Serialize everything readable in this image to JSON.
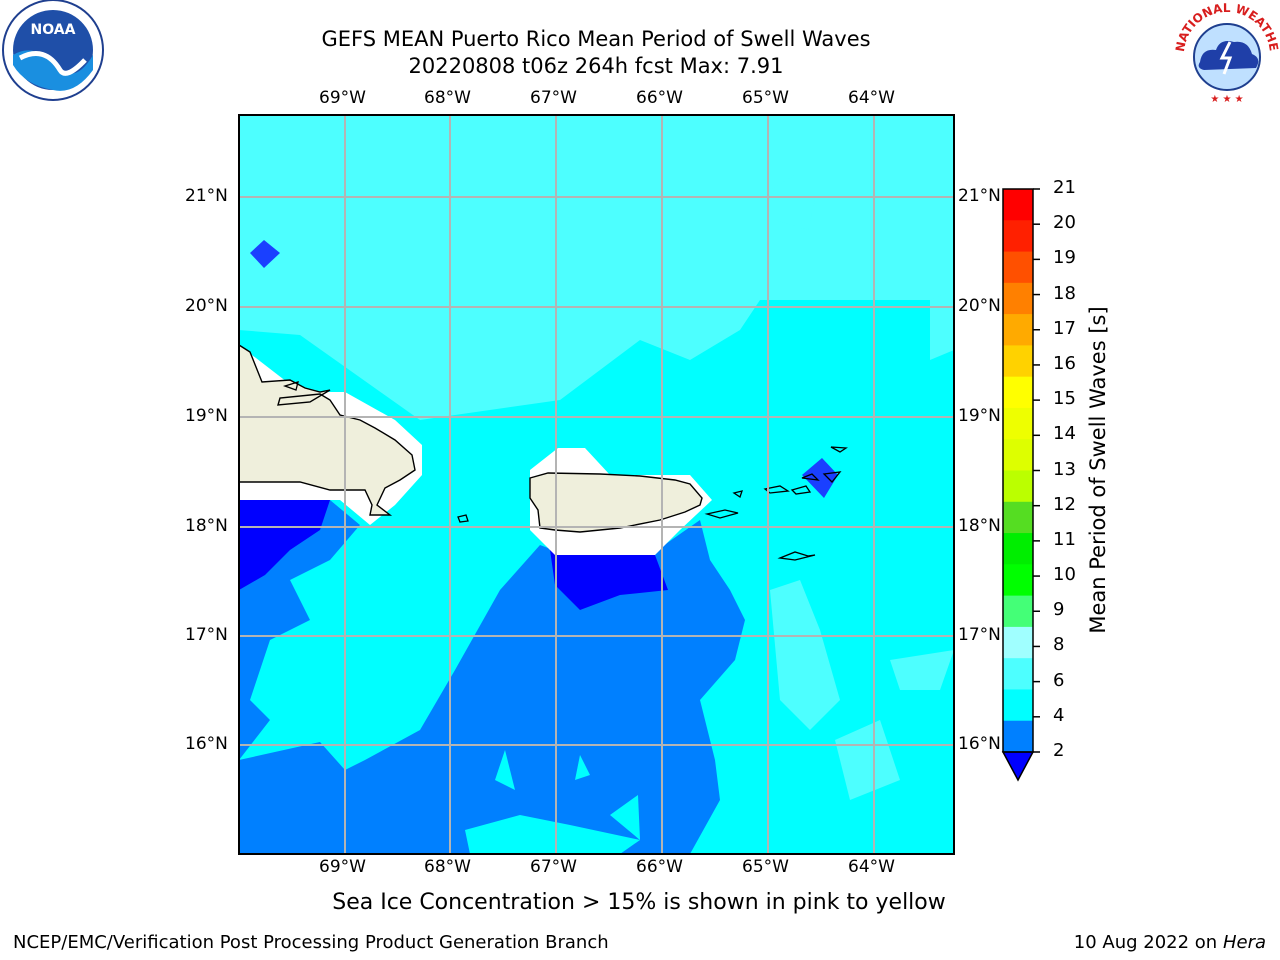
{
  "title_line1": "GEFS MEAN Puerto Rico Mean Period of Swell Waves",
  "title_line2": "20220808 t06z 264h fcst   Max: 7.91",
  "logos": {
    "left": "noaa-logo",
    "right": "nws-logo",
    "right_text": "NATIONAL WEATHER SERVICE"
  },
  "map": {
    "longitude_ticks": [
      "69°W",
      "68°W",
      "67°W",
      "66°W",
      "65°W",
      "64°W"
    ],
    "latitude_ticks": [
      "21°N",
      "20°N",
      "19°N",
      "18°N",
      "17°N",
      "16°N"
    ],
    "colors": {
      "land": "#efefdc",
      "sea_4_6": "#00ffff",
      "sea_6_8": "#4dffff",
      "sea_2_4": "#0080ff",
      "sea_lt2": "#0000ff",
      "grid": "#b4b4b4"
    }
  },
  "colorbar": {
    "label": "Mean Period of Swell Waves [s]",
    "ticks": [
      "21",
      "20",
      "19",
      "18",
      "17",
      "16",
      "15",
      "14",
      "13",
      "12",
      "11",
      "10",
      "9",
      "8",
      "6",
      "4",
      "2"
    ],
    "colors": [
      "#ff0000",
      "#ff2000",
      "#ff5000",
      "#ff8000",
      "#ffaa00",
      "#ffd200",
      "#ffff00",
      "#eeff00",
      "#ddff00",
      "#bbff00",
      "#55dd22",
      "#00ee00",
      "#00ff00",
      "#44ff77",
      "#a0ffff",
      "#4dffff",
      "#00ffff",
      "#0080ff"
    ],
    "underflow_color": "#0000ff"
  },
  "footer": {
    "note": "Sea Ice Concentration > 15% is shown in pink to yellow",
    "credit": "NCEP/EMC/Verification Post Processing Product Generation Branch",
    "date": "10 Aug 2022 on",
    "host": "Hera"
  }
}
